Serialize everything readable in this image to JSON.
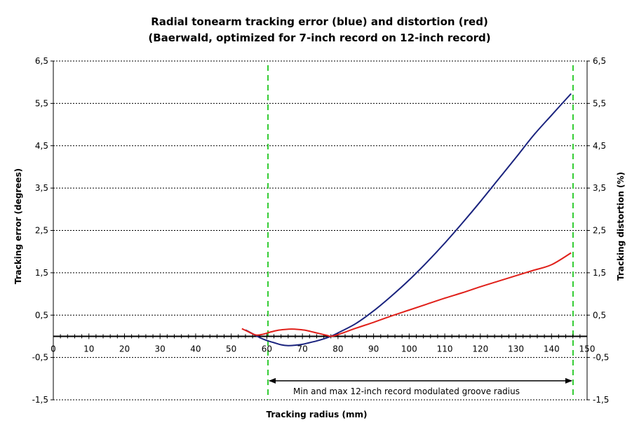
{
  "chart_data": {
    "type": "line",
    "title": "Radial tonearm tracking error (blue) and distortion (red)",
    "subtitle": "(Baerwald, optimized for 7-inch record on 12-inch record)",
    "xlabel": "Tracking radius (mm)",
    "ylabel_left": "Tracking error (degrees)",
    "ylabel_right": "Tracking distortion (%)",
    "xlim": [
      0,
      150
    ],
    "ylim": [
      -1.5,
      6.5
    ],
    "x_ticks": [
      "0",
      "10",
      "20",
      "30",
      "40",
      "50",
      "60",
      "70",
      "80",
      "90",
      "100",
      "110",
      "120",
      "130",
      "140",
      "150"
    ],
    "y_ticks": [
      "6,5",
      "5,5",
      "4,5",
      "3,5",
      "2,5",
      "1,5",
      "0,5",
      "-0,5",
      "-1,5"
    ],
    "y_tick_values": [
      6.5,
      5.5,
      4.5,
      3.5,
      2.5,
      1.5,
      0.5,
      -0.5,
      -1.5
    ],
    "grid": "horizontal-dotted",
    "colors": {
      "tracking_error": "#1a237e",
      "distortion": "#e0201a",
      "markers": "#33cc33"
    },
    "series": [
      {
        "key": "tracking_error",
        "x": [
          54,
          56,
          58,
          60,
          62,
          64,
          66,
          68,
          70,
          72,
          74,
          76,
          78,
          80,
          85,
          90,
          95,
          100,
          105,
          110,
          115,
          120,
          125,
          130,
          135,
          140,
          145.5
        ],
        "values": [
          0.15,
          0.06,
          -0.03,
          -0.1,
          -0.15,
          -0.2,
          -0.22,
          -0.21,
          -0.19,
          -0.15,
          -0.11,
          -0.06,
          0.0,
          0.08,
          0.3,
          0.6,
          0.95,
          1.33,
          1.75,
          2.2,
          2.68,
          3.18,
          3.7,
          4.22,
          4.75,
          5.22,
          5.73
        ]
      },
      {
        "key": "distortion",
        "x": [
          53,
          55,
          57,
          59,
          61,
          63,
          65,
          67,
          69,
          71,
          73,
          75,
          77,
          78,
          80,
          85,
          90,
          95,
          100,
          105,
          110,
          115,
          120,
          125,
          130,
          135,
          140,
          145.5
        ],
        "values": [
          0.18,
          0.1,
          0.03,
          0.05,
          0.1,
          0.14,
          0.16,
          0.17,
          0.16,
          0.14,
          0.1,
          0.06,
          0.02,
          0.0,
          0.04,
          0.19,
          0.33,
          0.48,
          0.62,
          0.76,
          0.9,
          1.03,
          1.17,
          1.3,
          1.43,
          1.56,
          1.69,
          1.97
        ]
      }
    ],
    "markers": [
      {
        "x": 60.325
      },
      {
        "x": 146.05
      }
    ],
    "annotation": "Min and max 12-inch record modulated groove radius"
  }
}
